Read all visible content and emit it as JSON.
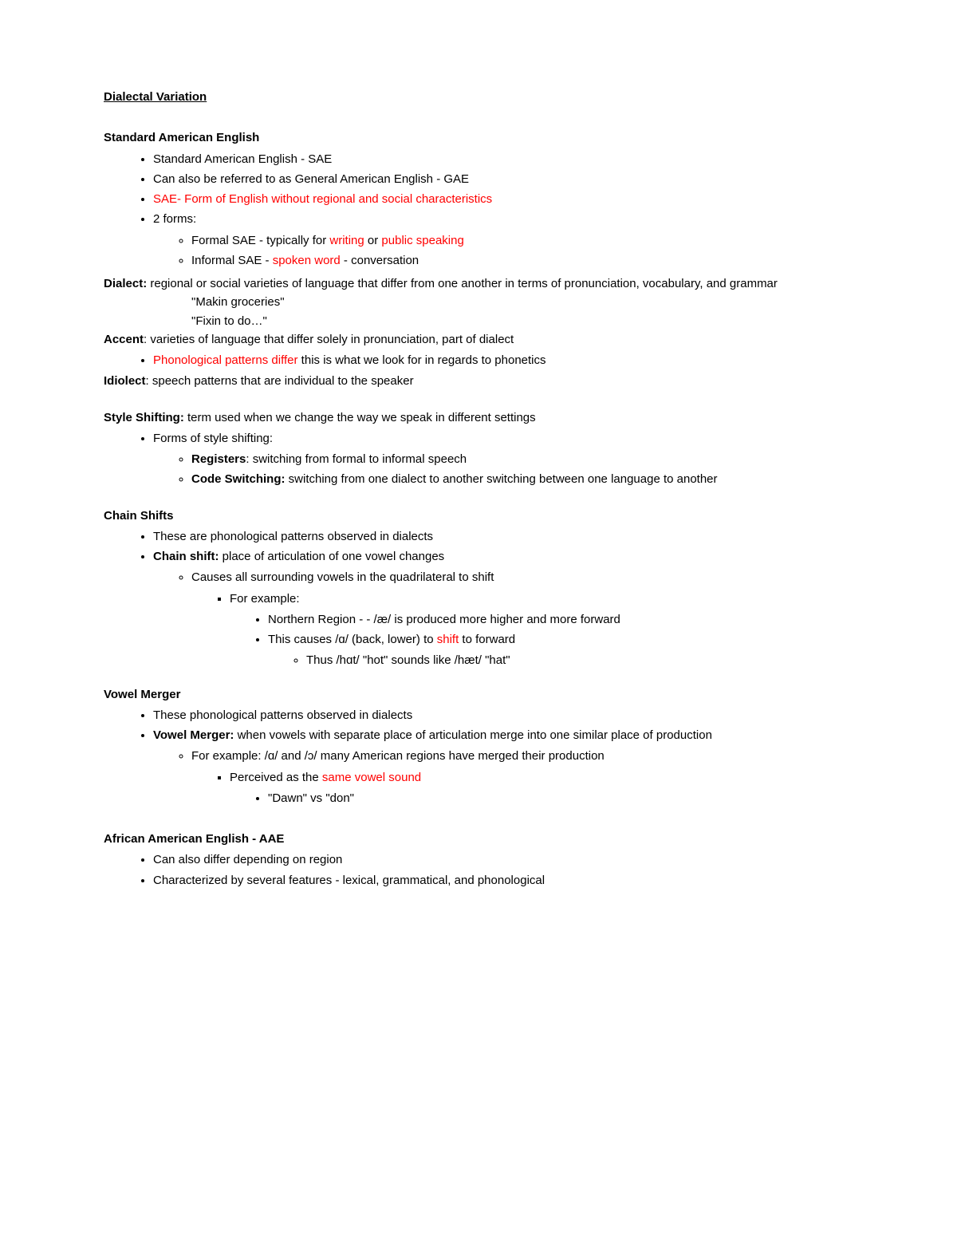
{
  "colors": {
    "text": "#000000",
    "accent": "#ff0000",
    "background": "#ffffff"
  },
  "typography": {
    "family": "Arial",
    "size_pt": 11,
    "line_height": 1.55
  },
  "title": "Dialectal Variation",
  "sae": {
    "heading": "Standard American English",
    "b1": "Standard American English - SAE",
    "b2": "Can also be referred to as General American English - GAE",
    "b3": "SAE- Form of English without regional and social characteristics",
    "b4": "2 forms:",
    "formal_pre": "Formal SAE - typically for ",
    "formal_red1": "writing",
    "formal_mid": " or ",
    "formal_red2": "public speaking",
    "informal_pre": "Informal SAE - ",
    "informal_red": "spoken word",
    "informal_post": " - conversation"
  },
  "dialect": {
    "label": "Dialect:",
    "text": " regional or social varieties of language that differ from one another in terms of pronunciation, vocabulary, and grammar",
    "ex1": "\"Makin groceries\"",
    "ex2": "\"Fixin to do…\""
  },
  "accent": {
    "label": "Accent",
    "text": ": varieties of language that differ solely in pronunciation, part of dialect",
    "bullet_red": "Phonological patterns differ",
    "bullet_post": " this is what we look for in regards to phonetics"
  },
  "idiolect": {
    "label": "Idiolect",
    "text": ": speech patterns that are individual to the speaker"
  },
  "style": {
    "label": "Style Shifting:",
    "text": " term used when we change the way we speak in different settings",
    "b1": "Forms of style shifting:",
    "reg_label": "Registers",
    "reg_text": ": switching from formal to informal speech",
    "code_label": "Code Switching:",
    "code_text": " switching from one dialect to another switching between one language to another"
  },
  "chain": {
    "heading": "Chain Shifts",
    "b1": "These are phonological patterns observed in dialects",
    "b2_label": "Chain shift:",
    "b2_text": " place of articulation of one vowel changes",
    "sub1": "Causes all surrounding vowels in the quadrilateral to shift",
    "ex_label": "For example:",
    "ex1": "Northern Region - - /æ/ is produced more higher and more forward",
    "ex2_pre": "This causes /ɑ/ (back, lower) to ",
    "ex2_red": "shift",
    "ex2_post": " to forward",
    "ex3": "Thus /hɑt/ \"hot\" sounds like /hæt/ \"hat\""
  },
  "merger": {
    "heading": "Vowel Merger",
    "b1": "These phonological patterns observed in dialects",
    "b2_label": "Vowel Merger:",
    "b2_text": " when vowels with separate place of articulation merge into one similar place of production",
    "sub1": "For example: /ɑ/ and /ɔ/  many American regions have merged their production",
    "perc_pre": "Perceived as the ",
    "perc_red": "same vowel sound",
    "ex": "\"Dawn\" vs \"don\""
  },
  "aae": {
    "heading": "African American English - AAE",
    "b1": "Can also differ depending on region",
    "b2": "Characterized by several features - lexical, grammatical, and phonological"
  }
}
